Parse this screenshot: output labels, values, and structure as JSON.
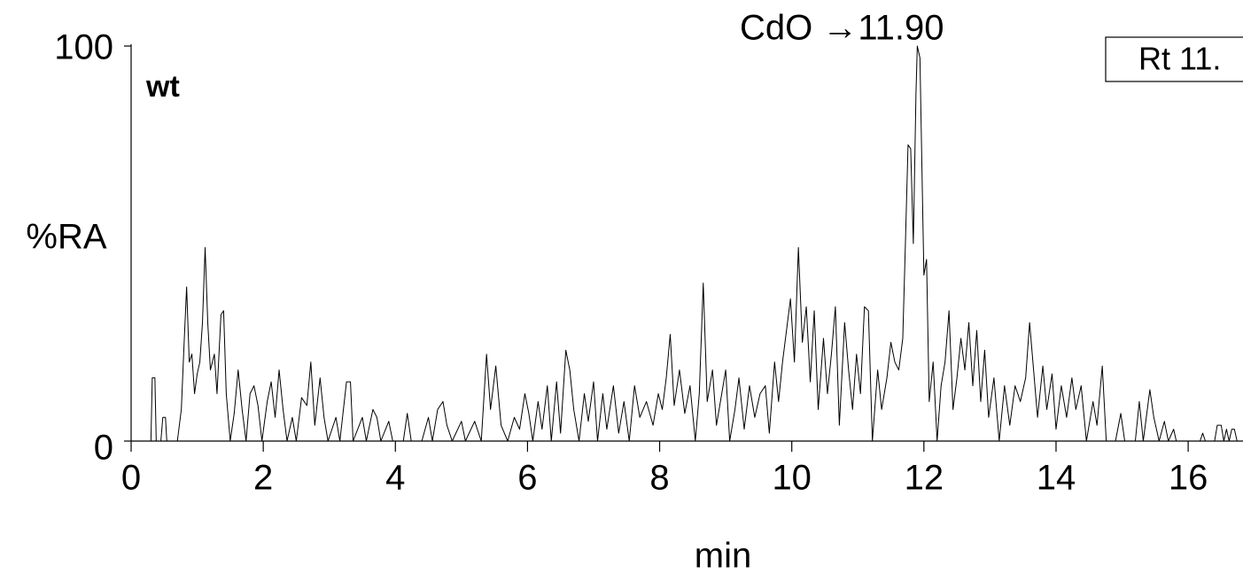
{
  "chart_data": {
    "type": "line",
    "y_label": "%RA",
    "x_label": "min",
    "sample_label": "wt",
    "annotation": "CdO →11.90",
    "box_label": "Rt 11.",
    "xlim": [
      0,
      16.83
    ],
    "ylim": [
      0,
      100
    ],
    "xticks": [
      0,
      2,
      4,
      6,
      8,
      10,
      12,
      14,
      16
    ],
    "yticks": [
      0,
      100
    ],
    "x": [
      0,
      0.3,
      0.32,
      0.36,
      0.38,
      0.45,
      0.48,
      0.52,
      0.54,
      0.7,
      0.76,
      0.8,
      0.84,
      0.88,
      0.92,
      0.96,
      1.0,
      1.04,
      1.08,
      1.12,
      1.16,
      1.2,
      1.26,
      1.3,
      1.36,
      1.4,
      1.44,
      1.5,
      1.56,
      1.62,
      1.68,
      1.74,
      1.8,
      1.86,
      1.92,
      1.98,
      2.06,
      2.12,
      2.18,
      2.24,
      2.3,
      2.36,
      2.44,
      2.5,
      2.58,
      2.66,
      2.72,
      2.78,
      2.86,
      2.92,
      2.98,
      3.1,
      3.16,
      3.26,
      3.32,
      3.36,
      3.5,
      3.56,
      3.66,
      3.72,
      3.78,
      3.9,
      3.96,
      4.12,
      4.18,
      4.24,
      4.4,
      4.5,
      4.56,
      4.64,
      4.72,
      4.78,
      4.86,
      5.0,
      5.06,
      5.2,
      5.3,
      5.38,
      5.44,
      5.52,
      5.6,
      5.7,
      5.8,
      5.88,
      5.96,
      6.02,
      6.08,
      6.16,
      6.22,
      6.3,
      6.36,
      6.44,
      6.5,
      6.58,
      6.64,
      6.7,
      6.78,
      6.86,
      6.92,
      7.0,
      7.06,
      7.14,
      7.2,
      7.3,
      7.38,
      7.46,
      7.54,
      7.62,
      7.7,
      7.8,
      7.9,
      7.98,
      8.04,
      8.1,
      8.16,
      8.22,
      8.3,
      8.38,
      8.46,
      8.54,
      8.6,
      8.66,
      8.72,
      8.8,
      8.86,
      8.94,
      9.0,
      9.06,
      9.14,
      9.2,
      9.28,
      9.36,
      9.44,
      9.52,
      9.6,
      9.66,
      9.74,
      9.8,
      9.86,
      9.92,
      9.98,
      10.04,
      10.1,
      10.16,
      10.22,
      10.28,
      10.34,
      10.4,
      10.48,
      10.54,
      10.6,
      10.66,
      10.72,
      10.8,
      10.86,
      10.92,
      10.98,
      11.04,
      11.1,
      11.16,
      11.22,
      11.3,
      11.36,
      11.44,
      11.5,
      11.56,
      11.62,
      11.68,
      11.72,
      11.76,
      11.8,
      11.84,
      11.88,
      11.9,
      11.94,
      11.98,
      12.0,
      12.04,
      12.08,
      12.14,
      12.2,
      12.26,
      12.32,
      12.38,
      12.44,
      12.5,
      12.56,
      12.62,
      12.68,
      12.74,
      12.8,
      12.86,
      12.92,
      12.98,
      13.06,
      13.14,
      13.22,
      13.3,
      13.38,
      13.46,
      13.54,
      13.6,
      13.66,
      13.72,
      13.8,
      13.86,
      13.94,
      14.0,
      14.08,
      14.16,
      14.24,
      14.3,
      14.38,
      14.46,
      14.56,
      14.62,
      14.7,
      14.76,
      14.9,
      14.98,
      15.04,
      15.2,
      15.26,
      15.32,
      15.42,
      15.48,
      15.56,
      15.64,
      15.7,
      15.78,
      15.82,
      16.18,
      16.22,
      16.26,
      16.4,
      16.44,
      16.5,
      16.54,
      16.58,
      16.62,
      16.66,
      16.7,
      16.74,
      16.82
    ],
    "series": [
      {
        "color": "#000000",
        "values": [
          0,
          0,
          16,
          16,
          0,
          0,
          6,
          6,
          0,
          0,
          8,
          24,
          39,
          20,
          22,
          12,
          17,
          20,
          30,
          49,
          30,
          18,
          22,
          12,
          32,
          33,
          12,
          0,
          7,
          18,
          8,
          0,
          12,
          14,
          9,
          0,
          10,
          15,
          6,
          18,
          8,
          0,
          6,
          0,
          11,
          9,
          20,
          4,
          16,
          6,
          0,
          6,
          0,
          15,
          15,
          0,
          6,
          0,
          8,
          6,
          0,
          5,
          0,
          0,
          7,
          0,
          0,
          6,
          0,
          8,
          10,
          4,
          0,
          5,
          0,
          5,
          0,
          22,
          8,
          19,
          4,
          0,
          6,
          3,
          12,
          7,
          0,
          10,
          3,
          14,
          0,
          15,
          2,
          23,
          18,
          8,
          0,
          12,
          5,
          15,
          0,
          12,
          3,
          14,
          2,
          10,
          0,
          14,
          6,
          10,
          4,
          12,
          8,
          16,
          27,
          9,
          18,
          7,
          14,
          0,
          12,
          40,
          10,
          18,
          4,
          12,
          18,
          0,
          8,
          16,
          3,
          14,
          6,
          12,
          14,
          2,
          20,
          10,
          20,
          28,
          36,
          20,
          49,
          25,
          34,
          15,
          33,
          8,
          26,
          12,
          22,
          34,
          4,
          30,
          18,
          8,
          22,
          12,
          34,
          33,
          0,
          18,
          8,
          16,
          25,
          20,
          18,
          26,
          50,
          75,
          74,
          50,
          88,
          100,
          97,
          60,
          42,
          46,
          10,
          20,
          0,
          14,
          20,
          33,
          8,
          16,
          26,
          18,
          30,
          14,
          28,
          10,
          23,
          6,
          16,
          0,
          14,
          4,
          14,
          10,
          16,
          30,
          18,
          6,
          19,
          8,
          17,
          3,
          14,
          6,
          16,
          8,
          14,
          0,
          10,
          4,
          19,
          0,
          0,
          7,
          0,
          0,
          10,
          0,
          13,
          6,
          0,
          5,
          0,
          3,
          0,
          0,
          2,
          0,
          0,
          4,
          4,
          0,
          3,
          0,
          3,
          3,
          0,
          0
        ]
      }
    ]
  }
}
